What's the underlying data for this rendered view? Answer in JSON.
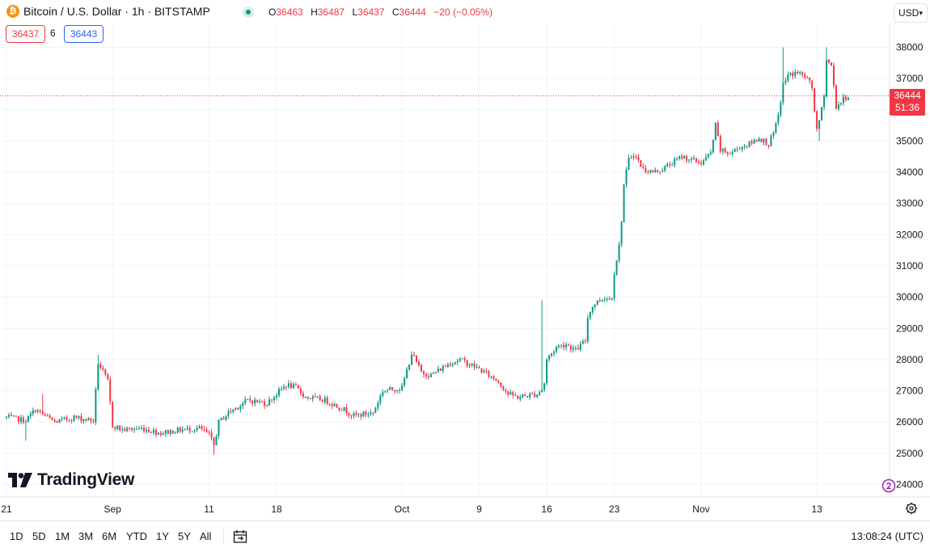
{
  "header": {
    "logo_glyph": "₿",
    "title": "Bitcoin / U.S. Dollar · 1h · BITSTAMP",
    "ohlc": {
      "o_key": "O",
      "o": "36463",
      "h_key": "H",
      "h": "36487",
      "l_key": "L",
      "l": "36437",
      "c_key": "C",
      "c": "36444",
      "change": "−20 (−0.05%)"
    },
    "bid": "36437",
    "spread": "6",
    "ask": "36443",
    "currency": "USD"
  },
  "price_label": {
    "price": "36444",
    "countdown": "51:36"
  },
  "branding": {
    "name": "TradingView"
  },
  "bottom": {
    "ranges": [
      "1D",
      "5D",
      "1M",
      "3M",
      "6M",
      "YTD",
      "1Y",
      "5Y",
      "All"
    ],
    "time": "13:08:24 (UTC)"
  },
  "colors": {
    "up": "#089981",
    "down": "#f23645",
    "grid": "#f0f3fa",
    "text": "#131722"
  },
  "chart_data": {
    "type": "candlestick",
    "title": "",
    "ylim": [
      23750,
      38500
    ],
    "y_ticks": [
      24000,
      25000,
      26000,
      27000,
      28000,
      29000,
      30000,
      31000,
      32000,
      33000,
      34000,
      35000,
      36000,
      37000,
      38000
    ],
    "y_tick_labels": [
      "24000",
      "25000",
      "26000",
      "27000",
      "28000",
      "29000",
      "30000",
      "31000",
      "32000",
      "33000",
      "34000",
      "35000",
      "36000",
      "37000",
      "38000"
    ],
    "x_ticks": [
      {
        "label": "21",
        "day": 0
      },
      {
        "label": "Sep",
        "day": 11
      },
      {
        "label": "11",
        "day": 21
      },
      {
        "label": "18",
        "day": 28
      },
      {
        "label": "Oct",
        "day": 41
      },
      {
        "label": "9",
        "day": 49
      },
      {
        "label": "16",
        "day": 56
      },
      {
        "label": "23",
        "day": 63
      },
      {
        "label": "Nov",
        "day": 72
      },
      {
        "label": "13",
        "day": 84
      }
    ],
    "last_price": 36444,
    "trend": [
      [
        0,
        26150
      ],
      [
        2,
        26050
      ],
      [
        3,
        26400
      ],
      [
        4,
        26200
      ],
      [
        5,
        26000
      ],
      [
        7,
        26150
      ],
      [
        9,
        26050
      ],
      [
        9.5,
        27900
      ],
      [
        10.5,
        27300
      ],
      [
        11,
        25900
      ],
      [
        12,
        25750
      ],
      [
        14,
        25800
      ],
      [
        16,
        25650
      ],
      [
        18,
        25750
      ],
      [
        20,
        25800
      ],
      [
        21,
        25600
      ],
      [
        21.5,
        25250
      ],
      [
        22,
        26000
      ],
      [
        23,
        26300
      ],
      [
        25,
        26700
      ],
      [
        27,
        26600
      ],
      [
        28,
        26900
      ],
      [
        29,
        27200
      ],
      [
        30,
        27100
      ],
      [
        31,
        26800
      ],
      [
        33,
        26700
      ],
      [
        35,
        26400
      ],
      [
        36,
        26200
      ],
      [
        38,
        26300
      ],
      [
        39,
        27000
      ],
      [
        41,
        27100
      ],
      [
        42,
        28200
      ],
      [
        43,
        27600
      ],
      [
        44,
        27500
      ],
      [
        45,
        27700
      ],
      [
        46,
        27900
      ],
      [
        47,
        28000
      ],
      [
        49,
        27700
      ],
      [
        50,
        27500
      ],
      [
        51,
        27300
      ],
      [
        52,
        26900
      ],
      [
        53,
        26800
      ],
      [
        55,
        26900
      ],
      [
        55.7,
        27100
      ],
      [
        56,
        28000
      ],
      [
        57,
        28400
      ],
      [
        58,
        28500
      ],
      [
        59,
        28300
      ],
      [
        60,
        28600
      ],
      [
        60.3,
        29500
      ],
      [
        61,
        29800
      ],
      [
        62,
        30000
      ],
      [
        62.7,
        29900
      ],
      [
        63,
        30800
      ],
      [
        63.6,
        31800
      ],
      [
        64,
        33600
      ],
      [
        64.5,
        34400
      ],
      [
        65,
        34600
      ],
      [
        66,
        34100
      ],
      [
        67,
        34000
      ],
      [
        68,
        34100
      ],
      [
        69,
        34300
      ],
      [
        70,
        34500
      ],
      [
        71,
        34400
      ],
      [
        72,
        34300
      ],
      [
        73,
        34600
      ],
      [
        73.5,
        35500
      ],
      [
        74,
        34700
      ],
      [
        75,
        34600
      ],
      [
        76,
        34800
      ],
      [
        77,
        34900
      ],
      [
        78,
        35100
      ],
      [
        79,
        34900
      ],
      [
        79.6,
        35300
      ],
      [
        80,
        35800
      ],
      [
        80.5,
        36800
      ],
      [
        81,
        37100
      ],
      [
        82,
        37200
      ],
      [
        83,
        37000
      ],
      [
        83.5,
        36700
      ],
      [
        84,
        35300
      ],
      [
        84.7,
        36300
      ],
      [
        85,
        37600
      ],
      [
        85.5,
        37400
      ],
      [
        86,
        36100
      ],
      [
        87,
        36400
      ],
      [
        87.3,
        36444
      ]
    ],
    "spikes": [
      [
        9.4,
        28150,
        "h"
      ],
      [
        3.7,
        26900,
        "h"
      ],
      [
        1.9,
        25400,
        "l"
      ],
      [
        21.6,
        24950,
        "l"
      ],
      [
        55.6,
        29900,
        "h"
      ],
      [
        80.6,
        38000,
        "h"
      ],
      [
        85.1,
        38000,
        "h"
      ],
      [
        84.2,
        35000,
        "l"
      ],
      [
        64.1,
        33300,
        "l"
      ]
    ]
  }
}
